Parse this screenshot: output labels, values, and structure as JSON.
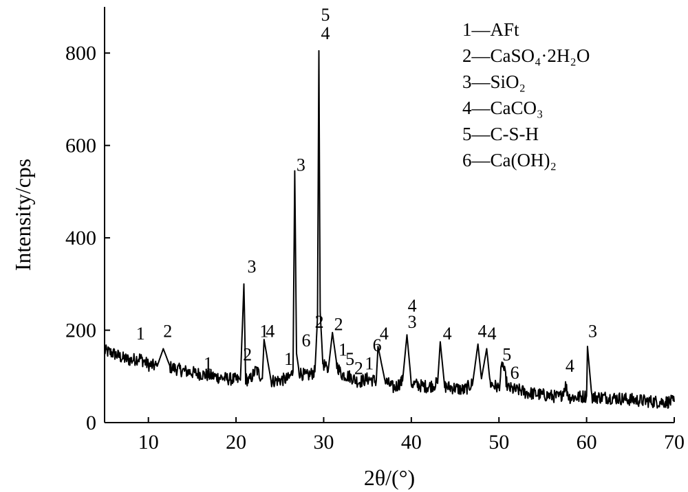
{
  "chart_data": {
    "type": "line",
    "title": "",
    "xlabel": "2θ/(°)",
    "ylabel": "Intensity/cps",
    "xlim": [
      5,
      70
    ],
    "ylim": [
      0,
      900
    ],
    "x_ticks": [
      10,
      20,
      30,
      40,
      50,
      60,
      70
    ],
    "y_ticks": [
      0,
      200,
      400,
      600,
      800
    ],
    "grid": false,
    "legend_position": "top-right",
    "legend": [
      {
        "text": "1—AFt"
      },
      {
        "text": "2—CaSO₄·2H₂O"
      },
      {
        "text": "3—SiO₂"
      },
      {
        "text": "4—CaCO₃"
      },
      {
        "text": "5—C-S-H"
      },
      {
        "text": "6—Ca(OH)₂"
      }
    ],
    "series": [
      {
        "x": [
          5,
          6,
          7,
          8,
          9,
          10,
          11,
          11.7,
          12.5,
          14,
          16,
          17.5,
          19,
          20.5,
          20.9,
          21.1,
          21.5,
          22.3,
          23,
          23.2,
          24,
          25,
          26,
          26.5,
          26.7,
          26.9,
          27.2,
          28,
          29,
          29.3,
          29.45,
          29.6,
          29.9,
          30.5,
          31,
          31.5,
          32,
          33,
          34,
          35,
          36,
          36.2,
          37,
          38,
          39,
          39.5,
          40,
          41,
          42,
          43,
          43.3,
          43.8,
          45,
          46,
          47,
          47.6,
          48,
          48.6,
          49,
          50,
          50.4,
          51,
          52,
          52.5,
          53,
          55,
          57,
          57.6,
          58,
          59,
          60,
          60.1,
          60.6,
          62,
          64,
          65,
          66,
          68,
          70
        ],
        "y": [
          155,
          150,
          140,
          135,
          140,
          125,
          122,
          160,
          120,
          112,
          105,
          100,
          95,
          92,
          300,
          95,
          90,
          115,
          95,
          180,
          90,
          92,
          95,
          110,
          545,
          150,
          110,
          100,
          110,
          230,
          805,
          240,
          130,
          110,
          195,
          125,
          105,
          100,
          88,
          95,
          90,
          165,
          90,
          75,
          90,
          190,
          85,
          80,
          78,
          85,
          175,
          78,
          75,
          70,
          85,
          170,
          95,
          160,
          85,
          75,
          130,
          75,
          70,
          70,
          65,
          60,
          55,
          80,
          55,
          55,
          58,
          165,
          55,
          55,
          52,
          50,
          48,
          45,
          45
        ]
      }
    ],
    "annotations": [
      {
        "text": "1",
        "x": 9.1,
        "y": 180
      },
      {
        "text": "2",
        "x": 12.2,
        "y": 185
      },
      {
        "text": "1",
        "x": 16.8,
        "y": 115
      },
      {
        "text": "3",
        "x": 21.8,
        "y": 325
      },
      {
        "text": "2",
        "x": 21.3,
        "y": 135
      },
      {
        "text": "1",
        "x": 23.2,
        "y": 185
      },
      {
        "text": "4",
        "x": 23.9,
        "y": 185
      },
      {
        "text": "6",
        "x": 28.0,
        "y": 165
      },
      {
        "text": "1",
        "x": 26.0,
        "y": 125
      },
      {
        "text": "3",
        "x": 27.4,
        "y": 545
      },
      {
        "text": "5",
        "x": 30.2,
        "y": 870
      },
      {
        "text": "4",
        "x": 30.2,
        "y": 830
      },
      {
        "text": "2",
        "x": 29.5,
        "y": 205
      },
      {
        "text": "2",
        "x": 31.7,
        "y": 200
      },
      {
        "text": "1",
        "x": 32.2,
        "y": 145
      },
      {
        "text": "5",
        "x": 33.0,
        "y": 125
      },
      {
        "text": "2",
        "x": 34.0,
        "y": 105
      },
      {
        "text": "1",
        "x": 35.2,
        "y": 115
      },
      {
        "text": "6",
        "x": 36.1,
        "y": 155
      },
      {
        "text": "4",
        "x": 36.9,
        "y": 180
      },
      {
        "text": "4",
        "x": 40.1,
        "y": 240
      },
      {
        "text": "3",
        "x": 40.1,
        "y": 205
      },
      {
        "text": "4",
        "x": 44.1,
        "y": 180
      },
      {
        "text": "4",
        "x": 48.1,
        "y": 185
      },
      {
        "text": "4",
        "x": 49.2,
        "y": 180
      },
      {
        "text": "5",
        "x": 50.9,
        "y": 135
      },
      {
        "text": "6",
        "x": 51.8,
        "y": 95
      },
      {
        "text": "4",
        "x": 58.1,
        "y": 110
      },
      {
        "text": "3",
        "x": 60.7,
        "y": 185
      }
    ]
  }
}
